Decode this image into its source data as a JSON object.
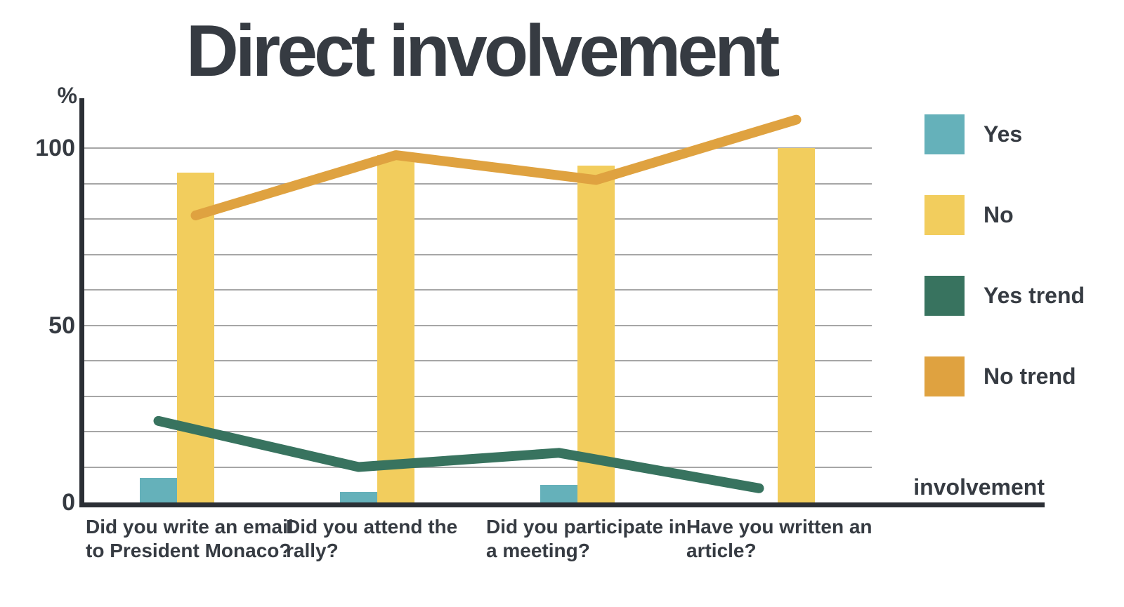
{
  "title": "Direct involvement",
  "colors": {
    "background": "#ffffff",
    "text": "#363b42",
    "axis": "#2b2f35",
    "gridline": "#a6a6a6",
    "yes": "#65b1ba",
    "no": "#f2cd5d",
    "yes_trend": "#38735f",
    "no_trend": "#dfa240"
  },
  "chart_data": {
    "type": "bar",
    "title": "Direct involvement",
    "ylabel": "%",
    "xlabel": "involvement",
    "categories": [
      "Did you write an email\nto President Monaco?",
      "Did you attend the\nrally?",
      "Did you participate in\na meeting?",
      "Have you written an\narticle?"
    ],
    "series": [
      {
        "name": "Yes",
        "type": "bar",
        "color": "#65b1ba",
        "values": [
          7,
          3,
          5,
          0
        ]
      },
      {
        "name": "No",
        "type": "bar",
        "color": "#f2cd5d",
        "values": [
          93,
          98,
          95,
          100
        ]
      },
      {
        "name": "Yes trend",
        "type": "line",
        "color": "#38735f",
        "values": [
          23,
          10,
          14,
          4
        ]
      },
      {
        "name": "No trend",
        "type": "line",
        "color": "#dfa240",
        "values": [
          81,
          98,
          91,
          108
        ]
      }
    ],
    "yticks": [
      0,
      50,
      100
    ],
    "gridline_step": 10,
    "gridline_max": 100,
    "ylim": [
      0,
      114
    ],
    "grid": true,
    "legend_position": "right"
  }
}
